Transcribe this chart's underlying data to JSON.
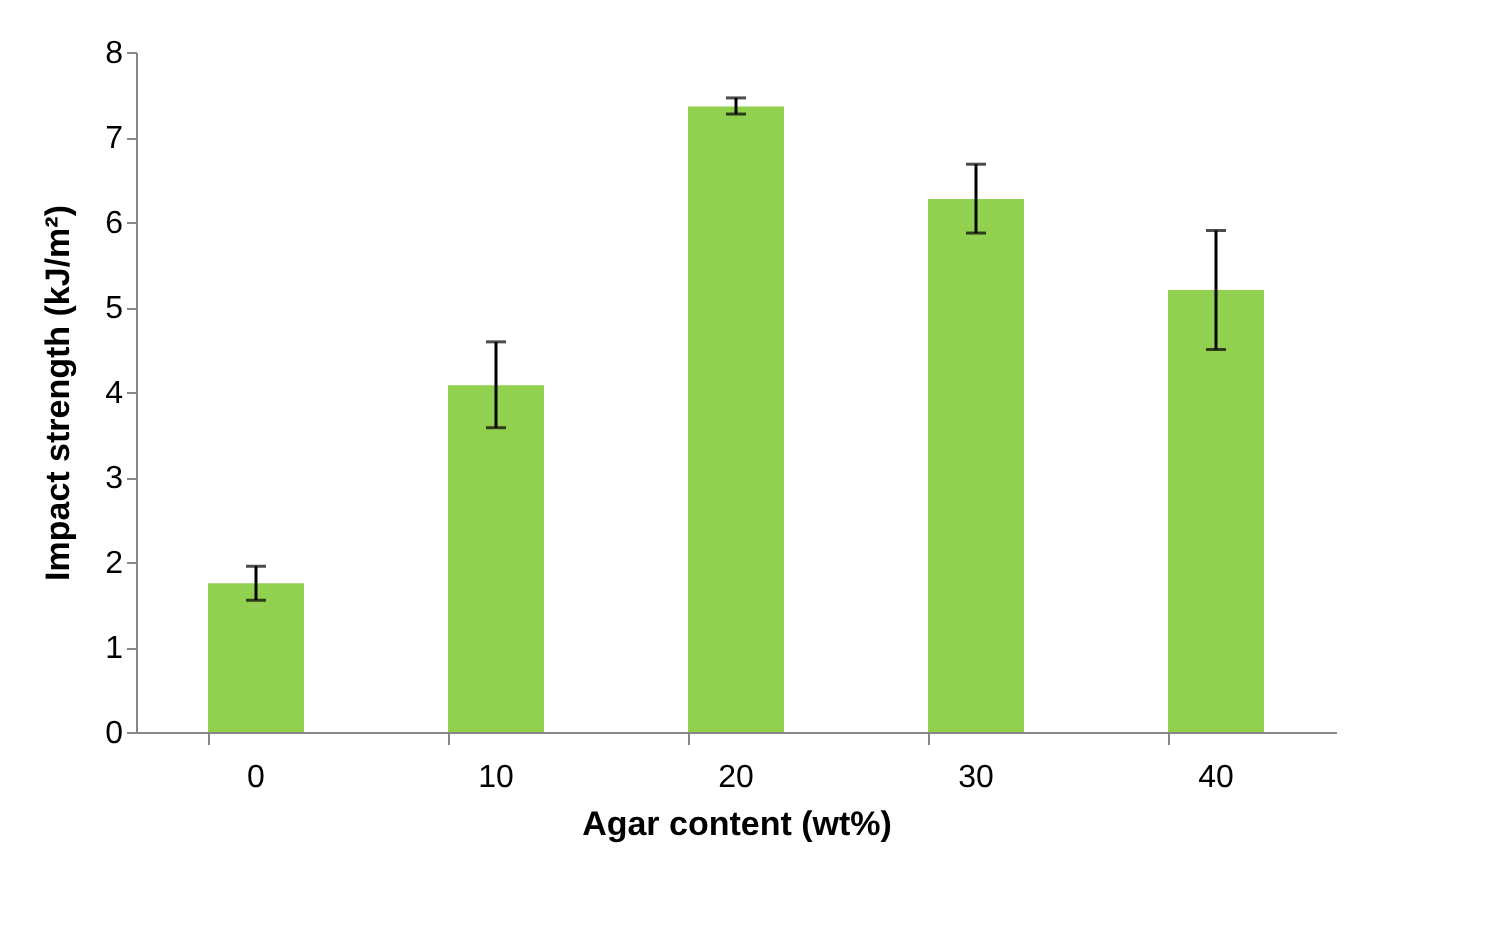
{
  "chart_data": {
    "type": "bar",
    "xlabel": "Agar content (wt%)",
    "ylabel": "Impact strength (kJ/m²)",
    "categories": [
      "0",
      "10",
      "20",
      "30",
      "40"
    ],
    "values": [
      1.75,
      4.08,
      7.36,
      6.27,
      5.2
    ],
    "errors": [
      [
        1.55,
        1.95
      ],
      [
        3.58,
        4.59
      ],
      [
        7.27,
        7.46
      ],
      [
        5.87,
        6.68
      ],
      [
        4.5,
        5.9
      ]
    ],
    "color": "#92d050",
    "ylim": [
      0,
      8
    ],
    "yticks": [
      0,
      1,
      2,
      3,
      4,
      5,
      6,
      7,
      8
    ],
    "grid": false
  }
}
